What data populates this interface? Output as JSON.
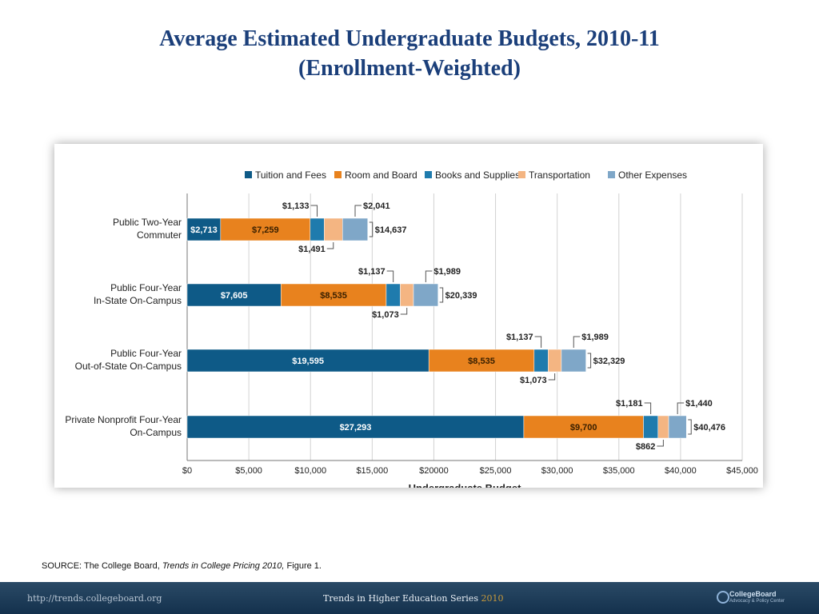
{
  "title": {
    "line1": "Average Estimated Undergraduate Budgets, 2010-11",
    "line2": "(Enrollment-Weighted)"
  },
  "source": {
    "prefix": "SOURCE: The College Board, ",
    "publication": "Trends in College Pricing 2010,",
    "suffix": " Figure 1."
  },
  "footer": {
    "url": "http://trends.collegeboard.org",
    "series": "Trends in Higher Education Series",
    "series_year": "2010",
    "logo_name": "CollegeBoard",
    "logo_sub": "Advocacy & Policy Center"
  },
  "chart_data": {
    "type": "bar",
    "orientation": "horizontal",
    "stacked": true,
    "xlabel": "Undergraduate Budget",
    "xlim": [
      0,
      45000
    ],
    "x_ticks": [
      0,
      5000,
      10000,
      15000,
      20000,
      25000,
      30000,
      35000,
      40000,
      45000
    ],
    "x_tick_labels": [
      "$0",
      "$5,000",
      "$10,000",
      "$15,000",
      "$20000",
      "$25,000",
      "$30,000",
      "$35,000",
      "$40,000",
      "$45,000"
    ],
    "grid": "vertical",
    "legend_position": "top",
    "categories": [
      [
        "Public Two-Year",
        "Commuter"
      ],
      [
        "Public Four-Year",
        "In-State On-Campus"
      ],
      [
        "Public Four-Year",
        "Out-of-State On-Campus"
      ],
      [
        "Private Nonprofit Four-Year",
        "On-Campus"
      ]
    ],
    "series": [
      {
        "name": "Tuition and Fees",
        "color": "#0e5a87",
        "values": [
          2713,
          7605,
          19595,
          27293
        ],
        "labels": [
          "$2,713",
          "$7,605",
          "$19,595",
          "$27,293"
        ]
      },
      {
        "name": "Room and Board",
        "color": "#e8821e",
        "values": [
          7259,
          8535,
          8535,
          9700
        ],
        "labels": [
          "$7,259",
          "$8,535",
          "$8,535",
          "$9,700"
        ]
      },
      {
        "name": "Books and Supplies",
        "color": "#1f7bad",
        "values": [
          1133,
          1137,
          1137,
          1181
        ],
        "labels": [
          "$1,133",
          "$1,137",
          "$1,137",
          "$1,181"
        ]
      },
      {
        "name": "Transportation",
        "color": "#f4b582",
        "values": [
          1491,
          1073,
          1073,
          862
        ],
        "labels": [
          "$1,491",
          "$1,073",
          "$1,073",
          "$862"
        ]
      },
      {
        "name": "Other Expenses",
        "color": "#7fa7c8",
        "values": [
          2041,
          1989,
          1989,
          1440
        ],
        "labels": [
          "$2,041",
          "$1,989",
          "$1,989",
          "$1,440"
        ]
      }
    ],
    "totals": [
      14637,
      20339,
      32329,
      40476
    ],
    "total_labels": [
      "$14,637",
      "$20,339",
      "$32,329",
      "$40,476"
    ]
  }
}
